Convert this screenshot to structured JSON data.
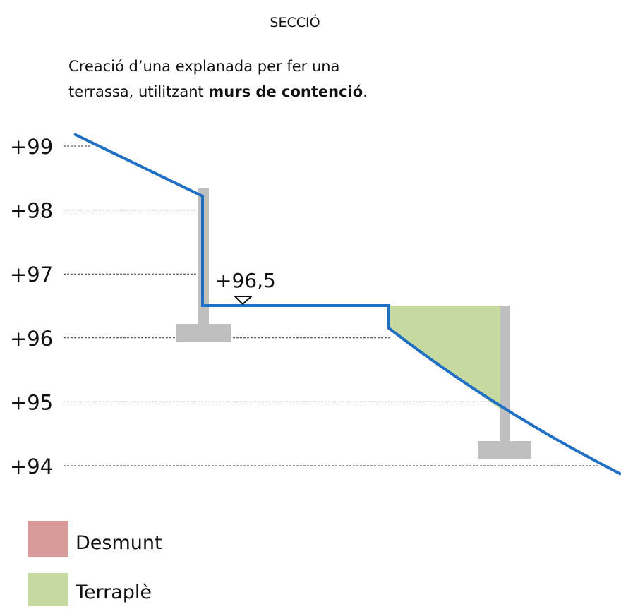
{
  "title": "SECCIÓ",
  "description": {
    "line1": "Creació d’una explanada per fer una",
    "line2": "terrassa, utilitzant ",
    "bold": "murs de contenció",
    "end": "."
  },
  "levels": [
    "+99",
    "+98",
    "+97",
    "+96",
    "+95",
    "+94"
  ],
  "platform_level": "+96,5",
  "legend": [
    "Desmunt",
    "Terraplè"
  ]
}
